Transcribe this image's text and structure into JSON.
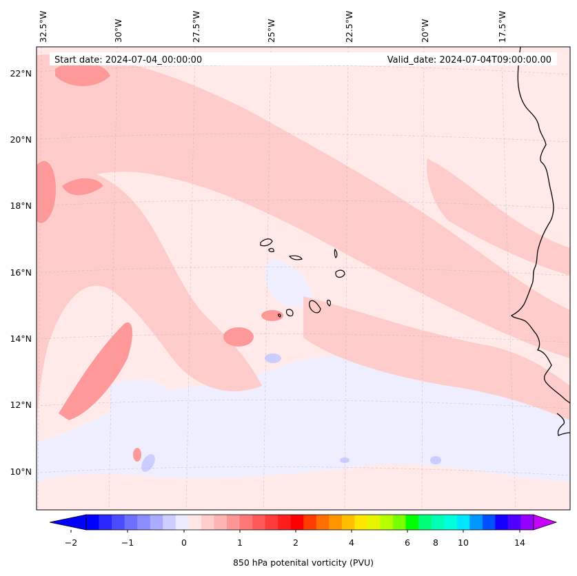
{
  "banner": {
    "start_date": "Start date: 2024-07-04_00:00:00",
    "valid_date": "Valid_date: 2024-07-04T09:00:00.00"
  },
  "axes": {
    "lon_labels": [
      "32.5°W",
      "30°W",
      "27.5°W",
      "25°W",
      "22.5°W",
      "20°W",
      "17.5°W"
    ],
    "lat_labels": [
      "22°N",
      "20°N",
      "18°N",
      "16°N",
      "14°N",
      "12°N",
      "10°N"
    ]
  },
  "colorbar": {
    "title": "850 hPa potenital vorticity (PVU)",
    "tick_labels": [
      "−2",
      "−1",
      "0",
      "1",
      "2",
      "4",
      "6",
      "8",
      "10",
      "14"
    ],
    "colors": [
      "#0000ff",
      "#2828ff",
      "#4b4bff",
      "#6e6eff",
      "#8c8cff",
      "#aaaaff",
      "#cdcdff",
      "#ebebff",
      "#ffe6e6",
      "#ffcdcd",
      "#ffb4b4",
      "#ff9696",
      "#ff7878",
      "#ff5a5a",
      "#ff3c3c",
      "#ff1e1e",
      "#ff0000",
      "#ff3c00",
      "#ff6e00",
      "#ff9600",
      "#ffbe00",
      "#ffe600",
      "#e6f500",
      "#b4ff00",
      "#78ff00",
      "#00ff00",
      "#00ff78",
      "#00ffb4",
      "#00ffdc",
      "#00e6ff",
      "#0096ff",
      "#0050ff",
      "#1400ff",
      "#5000ff",
      "#9600ff"
    ],
    "extend_low_color": "#0000ff",
    "extend_high_color": "#c800ff"
  },
  "map": {
    "background": "#ffe9e9"
  },
  "chart_data": {
    "type": "heatmap",
    "title": "850 hPa potenital vorticity (PVU)",
    "lon_range": [
      -32.6,
      -15.0
    ],
    "lat_range": [
      8.9,
      22.8
    ],
    "lon_ticks": [
      -32.5,
      -30,
      -27.5,
      -25,
      -22.5,
      -20,
      -17.5
    ],
    "lat_ticks": [
      22,
      20,
      18,
      16,
      14,
      12,
      10
    ],
    "levels": [
      -2,
      -1.75,
      -1.5,
      -1.25,
      -1,
      -0.75,
      -0.5,
      -0.25,
      0,
      0.25,
      0.5,
      0.75,
      1,
      1.25,
      1.5,
      1.75,
      2,
      2.5,
      3,
      3.5,
      4,
      4.5,
      5,
      5.5,
      6,
      7,
      8,
      9,
      10,
      11,
      12,
      13,
      14,
      15
    ],
    "colorbar_ticks": [
      -2,
      -1,
      0,
      1,
      2,
      4,
      6,
      8,
      10,
      14
    ],
    "extend": "both",
    "start_date": "2024-07-04_00:00:00",
    "valid_date": "2024-07-04T09:00:00.00"
  }
}
